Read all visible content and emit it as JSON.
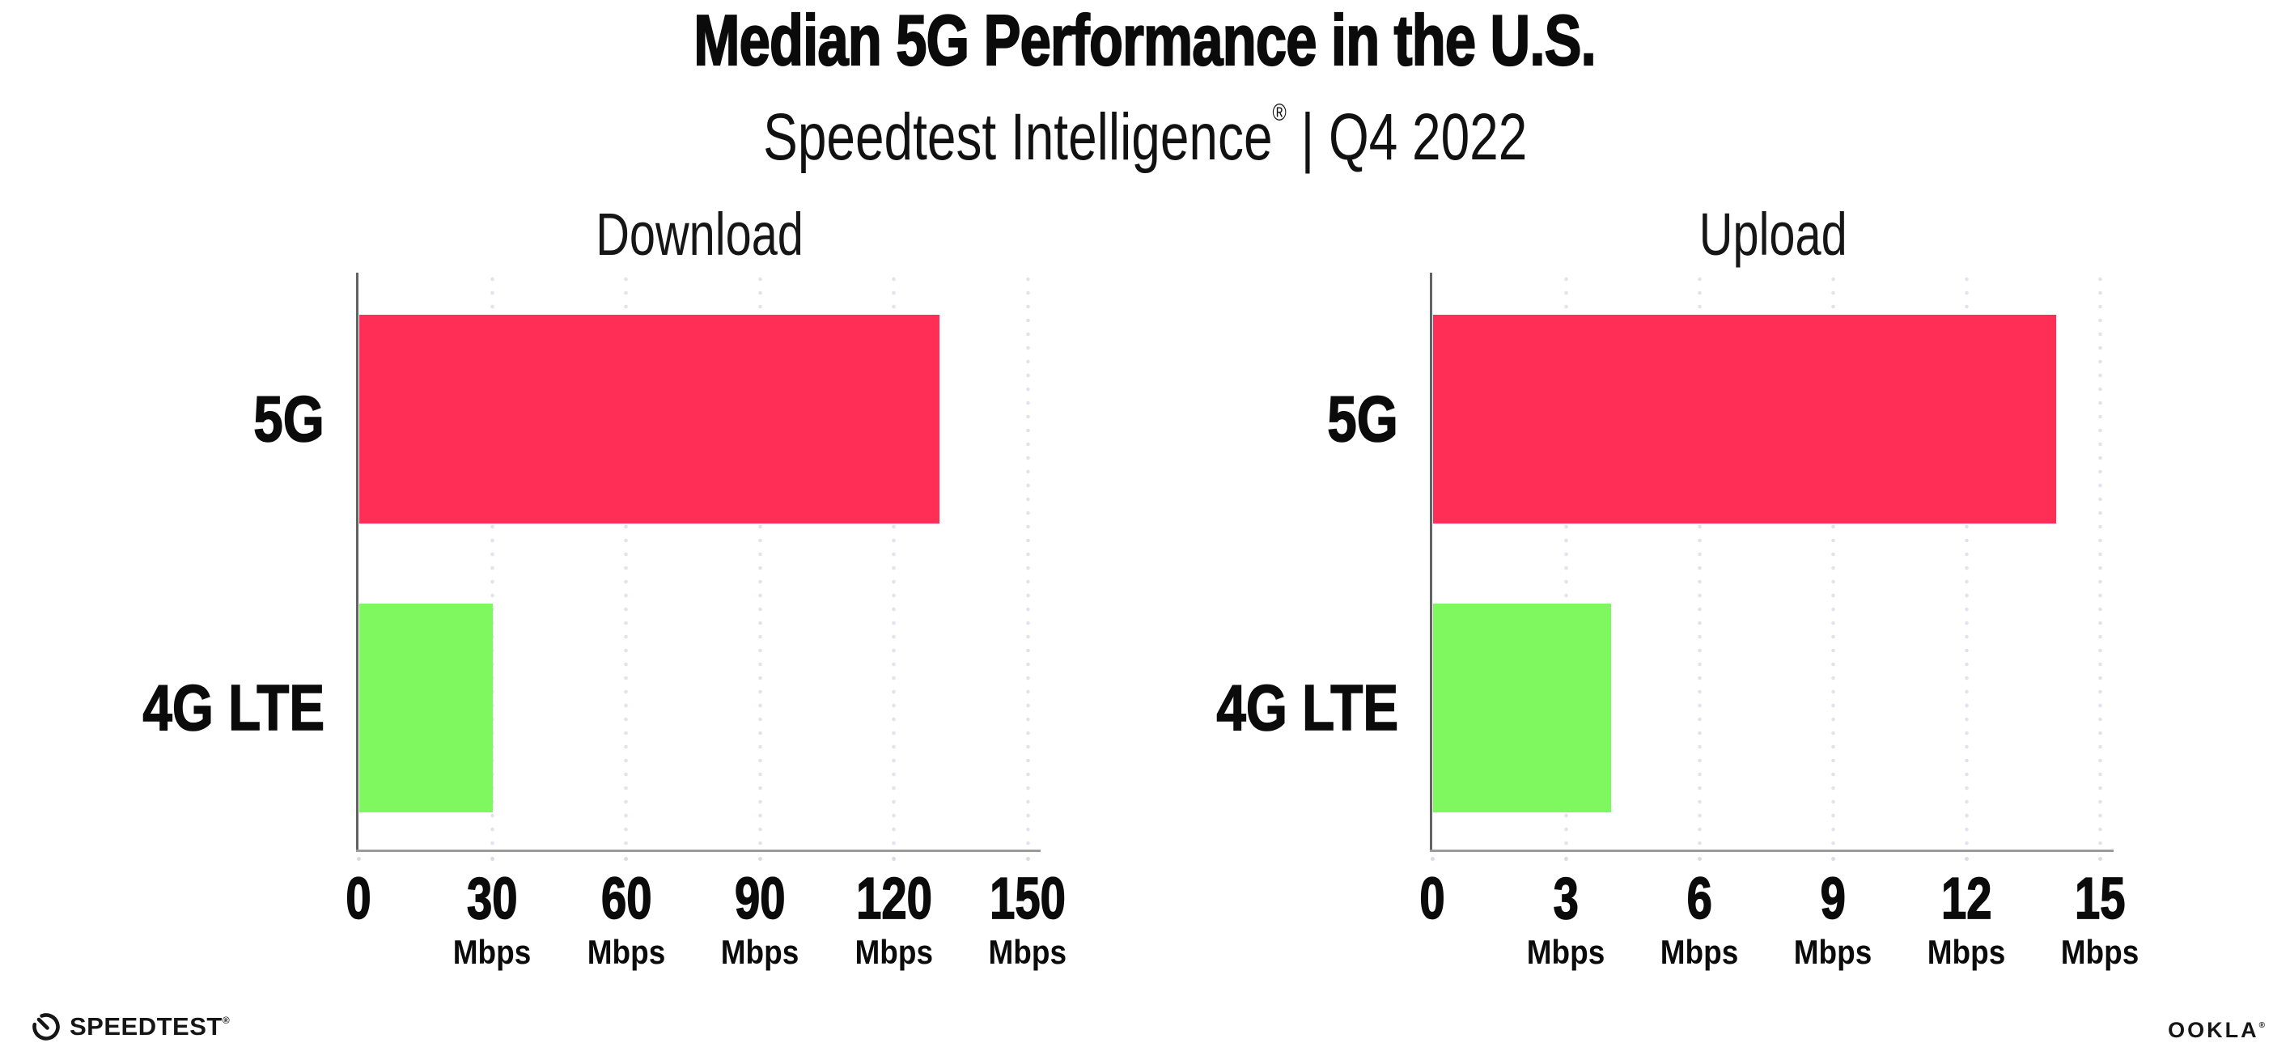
{
  "header": {
    "title": "Median 5G Performance in the U.S.",
    "subtitle_brand": "Speedtest Intelligence",
    "subtitle_reg": "®",
    "subtitle_rest": " | Q4 2022"
  },
  "footer": {
    "speedtest_label": "SPEEDTEST",
    "speedtest_reg": "®",
    "speedtest_icon": "speedtest-gauge-icon",
    "ookla_label": "OOKLA",
    "ookla_reg": "®"
  },
  "colors": {
    "bar_5g": "#FF2E57",
    "bar_4g_lte": "#7FF85F",
    "gridline": "#E4E2EE",
    "x_axis": "#9B9B9B",
    "y_axis": "#636363",
    "text": "#0B0B0B"
  },
  "chart_data": [
    {
      "type": "bar",
      "orientation": "horizontal",
      "title": "Download",
      "categories": [
        "5G",
        "4G LTE"
      ],
      "values": [
        130,
        30
      ],
      "bar_colors": [
        "#FF2E57",
        "#7FF85F"
      ],
      "unit": "Mbps",
      "xlim": [
        0,
        150
      ],
      "xticks": [
        0,
        30,
        60,
        90,
        120,
        150
      ],
      "xtick_labels": [
        "0",
        "30",
        "60",
        "90",
        "120",
        "150"
      ],
      "xtick_unit": "Mbps",
      "grid": "dotted-vertical",
      "legend": "none"
    },
    {
      "type": "bar",
      "orientation": "horizontal",
      "title": "Upload",
      "categories": [
        "5G",
        "4G LTE"
      ],
      "values": [
        14,
        4
      ],
      "bar_colors": [
        "#FF2E57",
        "#7FF85F"
      ],
      "unit": "Mbps",
      "xlim": [
        0,
        15
      ],
      "xticks": [
        0,
        3,
        6,
        9,
        12,
        15
      ],
      "xtick_labels": [
        "0",
        "3",
        "6",
        "9",
        "12",
        "15"
      ],
      "xtick_unit": "Mbps",
      "grid": "dotted-vertical",
      "legend": "none"
    }
  ]
}
